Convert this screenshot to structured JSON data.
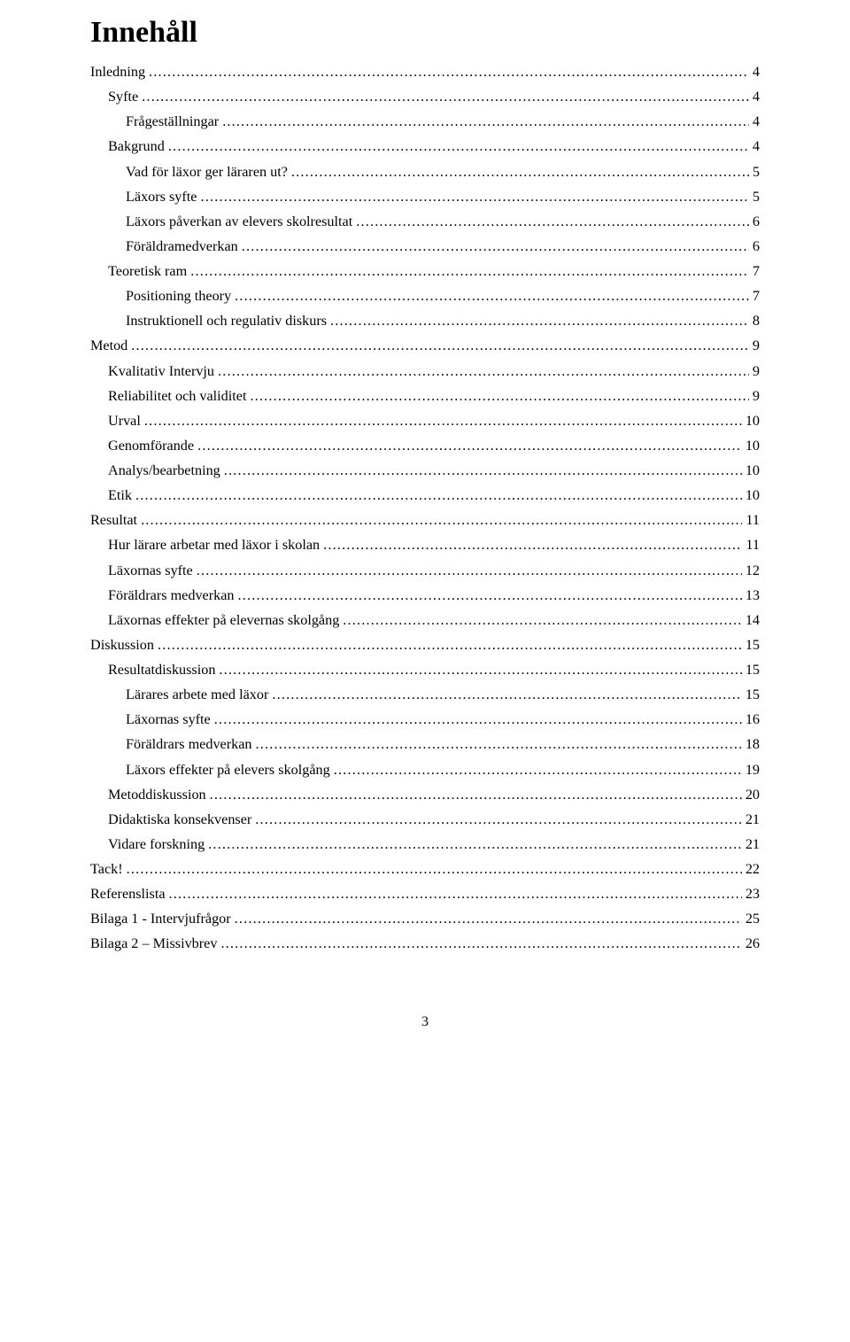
{
  "title": "Innehåll",
  "pageNumber": "3",
  "entries": [
    {
      "label": "Inledning",
      "page": "4",
      "indent": 0
    },
    {
      "label": "Syfte",
      "page": "4",
      "indent": 1
    },
    {
      "label": "Frågeställningar",
      "page": "4",
      "indent": 2
    },
    {
      "label": "Bakgrund",
      "page": "4",
      "indent": 1
    },
    {
      "label": "Vad för läxor ger läraren ut?",
      "page": "5",
      "indent": 2
    },
    {
      "label": "Läxors syfte",
      "page": "5",
      "indent": 2
    },
    {
      "label": "Läxors påverkan av elevers skolresultat",
      "page": "6",
      "indent": 2
    },
    {
      "label": "Föräldramedverkan",
      "page": "6",
      "indent": 2
    },
    {
      "label": "Teoretisk ram",
      "page": "7",
      "indent": 1
    },
    {
      "label": "Positioning theory",
      "page": "7",
      "indent": 2
    },
    {
      "label": "Instruktionell och regulativ diskurs",
      "page": "8",
      "indent": 2
    },
    {
      "label": "Metod",
      "page": "9",
      "indent": 0
    },
    {
      "label": "Kvalitativ Intervju",
      "page": "9",
      "indent": 1
    },
    {
      "label": "Reliabilitet och validitet",
      "page": "9",
      "indent": 1
    },
    {
      "label": "Urval",
      "page": "10",
      "indent": 1
    },
    {
      "label": "Genomförande",
      "page": "10",
      "indent": 1
    },
    {
      "label": "Analys/bearbetning",
      "page": "10",
      "indent": 1
    },
    {
      "label": "Etik",
      "page": "10",
      "indent": 1
    },
    {
      "label": "Resultat",
      "page": "11",
      "indent": 0
    },
    {
      "label": "Hur lärare arbetar med läxor i skolan",
      "page": "11",
      "indent": 1
    },
    {
      "label": "Läxornas syfte",
      "page": "12",
      "indent": 1
    },
    {
      "label": "Föräldrars medverkan",
      "page": "13",
      "indent": 1
    },
    {
      "label": "Läxornas effekter på elevernas skolgång",
      "page": "14",
      "indent": 1
    },
    {
      "label": "Diskussion",
      "page": "15",
      "indent": 0
    },
    {
      "label": "Resultatdiskussion",
      "page": "15",
      "indent": 1
    },
    {
      "label": "Lärares arbete med läxor",
      "page": "15",
      "indent": 2
    },
    {
      "label": "Läxornas syfte",
      "page": "16",
      "indent": 2
    },
    {
      "label": "Föräldrars medverkan",
      "page": "18",
      "indent": 2
    },
    {
      "label": "Läxors effekter på elevers skolgång",
      "page": "19",
      "indent": 2
    },
    {
      "label": "Metoddiskussion",
      "page": "20",
      "indent": 1
    },
    {
      "label": "Didaktiska konsekvenser",
      "page": "21",
      "indent": 1
    },
    {
      "label": "Vidare forskning",
      "page": "21",
      "indent": 1
    },
    {
      "label": "Tack!",
      "page": "22",
      "indent": 0
    },
    {
      "label": "Referenslista",
      "page": "23",
      "indent": 0
    },
    {
      "label": "Bilaga 1 - Intervjufrågor",
      "page": "25",
      "indent": 0
    },
    {
      "label": "Bilaga 2 – Missivbrev",
      "page": "26",
      "indent": 0
    }
  ]
}
